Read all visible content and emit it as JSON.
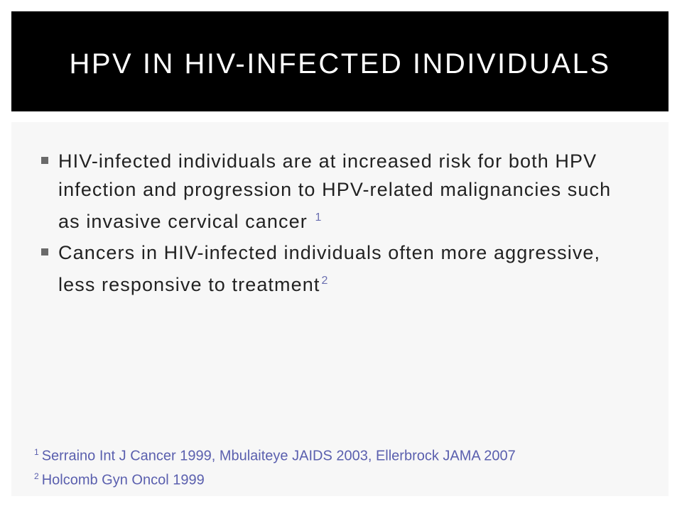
{
  "slide": {
    "title": "HPV IN HIV-INFECTED INDIVIDUALS",
    "bullets": [
      {
        "text": "HIV-infected individuals are at increased risk for both HPV infection and progression to HPV-related malignancies such as invasive cervical cancer",
        "ref": "1"
      },
      {
        "text": "Cancers in HIV-infected individuals often more aggressive, less responsive to treatment",
        "ref": "2"
      }
    ],
    "footnotes": [
      {
        "num": "1",
        "text": "Serraino Int J Cancer 1999, Mbulaiteye JAIDS 2003, Ellerbrock JAMA 2007"
      },
      {
        "num": "2",
        "text": "Holcomb Gyn Oncol 1999"
      }
    ]
  },
  "colors": {
    "title_bg": "#000000",
    "title_text": "#ffffff",
    "content_bg": "#f7f7f7",
    "footnote_text": "#5a5fae"
  }
}
